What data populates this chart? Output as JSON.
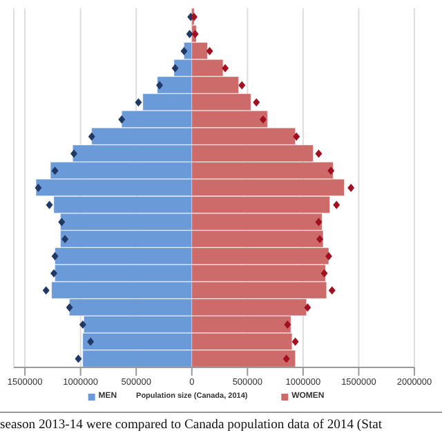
{
  "chart_data": {
    "type": "bar",
    "orientation": "horizontal",
    "stacked": true,
    "xlabel": "Population size (Canada, 2014)",
    "categories": [
      null,
      null,
      null,
      null,
      null,
      null,
      null,
      null,
      null,
      null,
      null,
      null,
      null,
      null,
      null,
      null,
      null,
      null,
      null,
      null,
      null
    ],
    "series": [
      {
        "name": "MEN",
        "color": "#6a9ad8",
        "values": [
          null,
          null,
          -70000,
          -160000,
          -310000,
          -440000,
          -630000,
          -900000,
          -1070000,
          -1270000,
          -1400000,
          -1240000,
          -1180000,
          -1180000,
          -1230000,
          -1230000,
          -1260000,
          -1100000,
          -970000,
          -980000,
          -980000
        ]
      },
      {
        "name": "WOMEN",
        "color": "#cd6b6b",
        "values": [
          20000,
          40000,
          140000,
          280000,
          420000,
          530000,
          680000,
          930000,
          1090000,
          1270000,
          1370000,
          1240000,
          1170000,
          1180000,
          1230000,
          1200000,
          1210000,
          1030000,
          890000,
          900000,
          930000
        ]
      },
      {
        "type": "scatter",
        "color": "#1f3864",
        "values": [
          -10000,
          -20000,
          -70000,
          -150000,
          -290000,
          -480000,
          -630000,
          -900000,
          -1060000,
          -1230000,
          -1380000,
          -1280000,
          -1170000,
          -1140000,
          -1230000,
          -1240000,
          -1310000,
          -1100000,
          -980000,
          -910000,
          -1020000
        ]
      },
      {
        "type": "scatter",
        "color": "#a01020",
        "values": [
          20000,
          30000,
          160000,
          300000,
          450000,
          580000,
          640000,
          940000,
          1140000,
          1250000,
          1430000,
          1300000,
          1140000,
          1150000,
          1230000,
          1190000,
          1260000,
          1040000,
          860000,
          930000,
          850000
        ]
      }
    ],
    "marker": "diamond",
    "xlim": [
      -1600000,
      2000000
    ],
    "xticks": [
      {
        "value": -1500000,
        "label": "1500000"
      },
      {
        "value": -1000000,
        "label": "1000000"
      },
      {
        "value": -500000,
        "label": "500000"
      },
      0,
      500000,
      1000000,
      1500000,
      2000000
    ],
    "grid": "x",
    "tick_labels": "x",
    "legend": "bottom",
    "annotations": [
      "season 2013-14 were compared to Canada population data of 2014 (Stat"
    ]
  }
}
